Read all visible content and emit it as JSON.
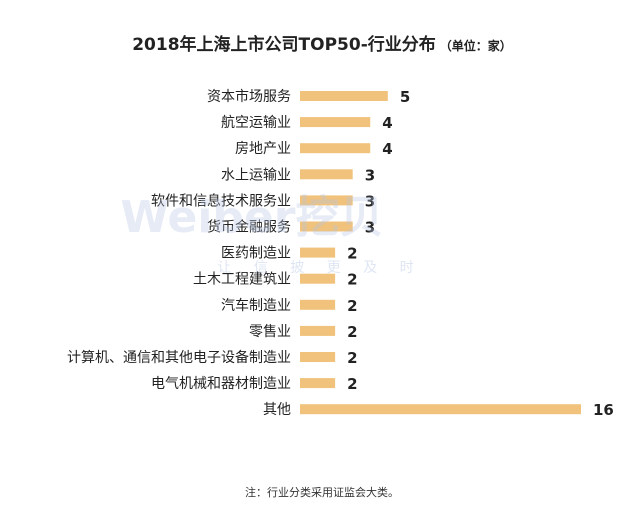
{
  "chart_data": {
    "type": "bar",
    "orientation": "horizontal",
    "title": "2018年上海上市公司TOP50-行业分布",
    "unit": "（单位：家）",
    "categories": [
      "资本市场服务",
      "航空运输业",
      "房地产业",
      "水上运输业",
      "软件和信息技术服务业",
      "货币金融服务",
      "医药制造业",
      "土木工程建筑业",
      "汽车制造业",
      "零售业",
      "计算机、通信和其他电子设备制造业",
      "电气机械和器材制造业",
      "其他"
    ],
    "values": [
      5,
      4,
      4,
      3,
      3,
      3,
      2,
      2,
      2,
      2,
      2,
      2,
      16
    ],
    "xlim": [
      0,
      16
    ],
    "grid": false,
    "legend": "none",
    "bar_color": "#f0c27b"
  },
  "watermark": {
    "brand": "Weiber挖贝",
    "slogan": "让 信 披 更 及 时"
  },
  "footnote": "注：行业分类采用证监会大类。"
}
